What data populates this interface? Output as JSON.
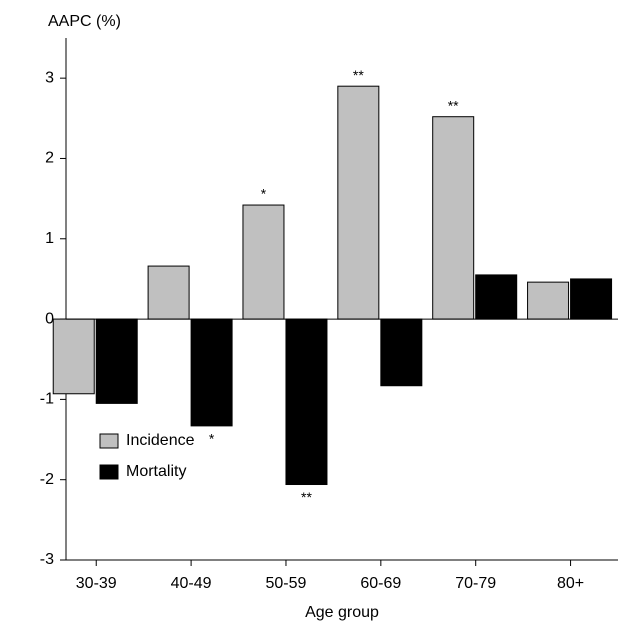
{
  "chart_data": {
    "type": "bar",
    "y_axis_label": "AAPC (%)",
    "x_axis_label": "Age group",
    "categories": [
      "30-39",
      "40-49",
      "50-59",
      "60-69",
      "70-79",
      "80+"
    ],
    "series": [
      {
        "name": "Incidence",
        "color": "#c0c0c0",
        "values": [
          -0.93,
          0.66,
          1.42,
          2.9,
          2.52,
          0.46
        ],
        "annotations": [
          null,
          null,
          "*",
          "**",
          "**",
          null
        ]
      },
      {
        "name": "Mortality",
        "color": "#000000",
        "values": [
          -1.05,
          -1.33,
          -2.06,
          -0.83,
          0.55,
          0.5
        ],
        "annotations": [
          null,
          "*",
          "**",
          null,
          null,
          null
        ]
      }
    ],
    "ylim": [
      -3,
      3.5
    ],
    "yticks": [
      -3,
      -2,
      -1,
      0,
      1,
      2,
      3
    ],
    "legend": "lower-left"
  }
}
